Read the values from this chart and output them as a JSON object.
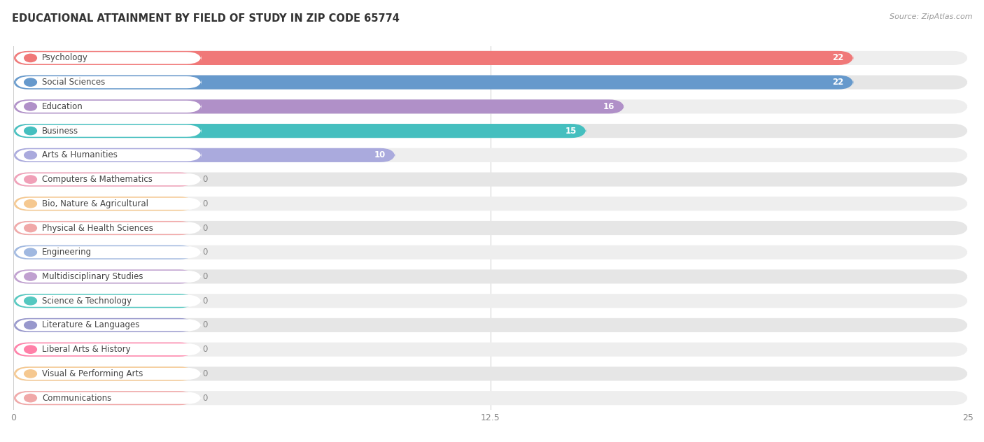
{
  "title": "EDUCATIONAL ATTAINMENT BY FIELD OF STUDY IN ZIP CODE 65774",
  "source": "Source: ZipAtlas.com",
  "categories": [
    "Psychology",
    "Social Sciences",
    "Education",
    "Business",
    "Arts & Humanities",
    "Computers & Mathematics",
    "Bio, Nature & Agricultural",
    "Physical & Health Sciences",
    "Engineering",
    "Multidisciplinary Studies",
    "Science & Technology",
    "Literature & Languages",
    "Liberal Arts & History",
    "Visual & Performing Arts",
    "Communications"
  ],
  "values": [
    22,
    22,
    16,
    15,
    10,
    0,
    0,
    0,
    0,
    0,
    0,
    0,
    0,
    0,
    0
  ],
  "bar_colors": [
    "#F07878",
    "#6699CC",
    "#B090C8",
    "#45BFBF",
    "#AAAADD",
    "#F0A0B8",
    "#F5C890",
    "#F0A8A8",
    "#A0B8E0",
    "#C0A0D0",
    "#55C8C0",
    "#9898CC",
    "#FF80A8",
    "#F5C890",
    "#F0A8A8"
  ],
  "xlim": [
    0,
    25
  ],
  "xticks": [
    0,
    12.5,
    25
  ],
  "background_color": "#ffffff",
  "bar_height": 0.58,
  "label_fontsize": 8.5,
  "value_fontsize": 8.5,
  "title_fontsize": 10.5,
  "row_bg_light": "#f0f0f0",
  "row_bg_full": "#e8e8e8",
  "pill_bg": "#ffffff",
  "label_color": "#444444"
}
